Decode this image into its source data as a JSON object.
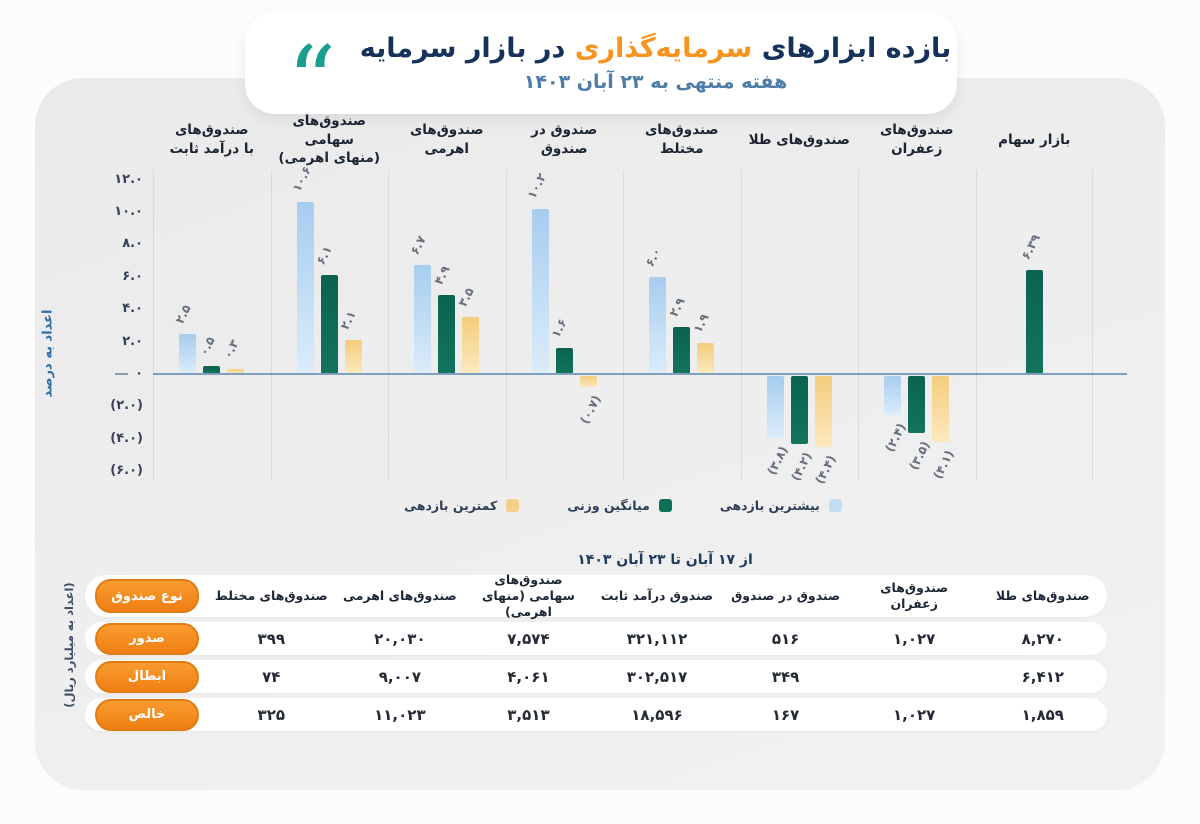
{
  "title": {
    "part1": "بازده ابزارهای",
    "highlight": "سرمایه‌گذاری",
    "part2": "در بازار سرمایه",
    "subtitle": "هفته منتهی به ۲۳ آبان ۱۴۰۳"
  },
  "colors": {
    "title_navy": "#16325c",
    "title_orange": "#f7941e",
    "subtitle_blue": "#4d7da8",
    "quote_teal": "#1b9e8e",
    "bar_highest": "#b9d8f3",
    "bar_weighted_avg": "#0e6e57",
    "bar_lowest": "#f5d088",
    "zero_line": "#7fa0bc",
    "row_pill_orange": "#f68d1f",
    "card_gray": "#ececec"
  },
  "chart_data": {
    "type": "bar",
    "title": "بازده ابزارهای سرمایه‌گذاری در بازار سرمایه",
    "subtitle": "هفته منتهی به ۲۳ آبان ۱۴۰۳",
    "ylabel": "اعداد به درصد",
    "ylim": [
      -6.6,
      12.6
    ],
    "grid": "vertical-separators",
    "legend_position": "bottom-center",
    "yticks": [
      "۱۲.۰",
      "۱۰.۰",
      "۸.۰",
      "۶.۰",
      "۴.۰",
      "۲.۰",
      "۰",
      "(۲.۰)",
      "(۴.۰)",
      "(۶.۰)"
    ],
    "ytick_values": [
      12,
      10,
      8,
      6,
      4,
      2,
      0,
      -2,
      -4,
      -6
    ],
    "series_names": [
      "بیشترین بازدهی",
      "میانگین وزنی",
      "کمترین بازدهی"
    ],
    "groups": [
      {
        "label": "صندوق‌های با درآمد ثابت",
        "label_lines": [
          "صندوق‌های",
          "با درآمد ثابت"
        ],
        "bars": [
          {
            "series": "high",
            "value": 2.5,
            "label": "۲.۵"
          },
          {
            "series": "avg",
            "value": 0.5,
            "label": "۰.۵"
          },
          {
            "series": "low",
            "value": 0.3,
            "label": "۰.۳"
          }
        ]
      },
      {
        "label": "صندوق‌های سهامی (منهای اهرمی)",
        "label_lines": [
          "صندوق‌های سهامی",
          "(منهای اهرمی)"
        ],
        "bars": [
          {
            "series": "high",
            "value": 10.6,
            "label": "۱۰.۶"
          },
          {
            "series": "avg",
            "value": 6.1,
            "label": "۶.۱"
          },
          {
            "series": "low",
            "value": 2.1,
            "label": "۲.۱"
          }
        ]
      },
      {
        "label": "صندوق‌های اهرمی",
        "label_lines": [
          "صندوق‌های اهرمی"
        ],
        "bars": [
          {
            "series": "high",
            "value": 6.7,
            "label": "۶.۷"
          },
          {
            "series": "avg",
            "value": 4.9,
            "label": "۴.۹"
          },
          {
            "series": "low",
            "value": 3.5,
            "label": "۳.۵"
          }
        ]
      },
      {
        "label": "صندوق در صندوق",
        "label_lines": [
          "صندوق در صندوق"
        ],
        "bars": [
          {
            "series": "high",
            "value": 10.2,
            "label": "۱۰.۲"
          },
          {
            "series": "avg",
            "value": 1.6,
            "label": "۱.۶"
          },
          {
            "series": "low",
            "value": -0.7,
            "label": "(۰.۷)"
          }
        ]
      },
      {
        "label": "صندوق‌های مختلط",
        "label_lines": [
          "صندوق‌های مختلط"
        ],
        "bars": [
          {
            "series": "high",
            "value": 6.0,
            "label": "۶.۰"
          },
          {
            "series": "avg",
            "value": 2.9,
            "label": "۲.۹"
          },
          {
            "series": "low",
            "value": 1.9,
            "label": "۱.۹"
          }
        ]
      },
      {
        "label": "صندوق‌های طلا",
        "label_lines": [
          "صندوق‌های طلا"
        ],
        "bars": [
          {
            "series": "high",
            "value": -3.8,
            "label": "(۳.۸)"
          },
          {
            "series": "avg",
            "value": -4.2,
            "label": "(۴.۲)"
          },
          {
            "series": "low",
            "value": -4.4,
            "label": "(۴.۴)"
          }
        ]
      },
      {
        "label": "صندوق‌های زعفران",
        "label_lines": [
          "صندوق‌های زعفران"
        ],
        "bars": [
          {
            "series": "high",
            "value": -2.4,
            "label": "(۲.۴)"
          },
          {
            "series": "avg",
            "value": -3.5,
            "label": "(۳.۵)"
          },
          {
            "series": "low",
            "value": -4.1,
            "label": "(۴.۱)"
          }
        ]
      },
      {
        "label": "بازار سهام",
        "label_lines": [
          "بازار سهام"
        ],
        "bars": [
          {
            "series": "avg",
            "value": 6.39,
            "label": "۶.۳۹"
          }
        ]
      }
    ],
    "legend": [
      {
        "name": "کمترین بازدهی",
        "series": "low",
        "color": "#f5d088"
      },
      {
        "name": "میانگین وزنی",
        "series": "avg",
        "color": "#0e6e57"
      },
      {
        "name": "بیشترین بازدهی",
        "series": "high",
        "color": "#c3ddf3"
      }
    ]
  },
  "table": {
    "period": "از ۱۷ آبان تا ۲۳ آبان ۱۴۰۳",
    "unit_label": "(اعداد به میلیارد ریال)",
    "header_pill": "نوع صندوق",
    "columns": [
      "صندوق‌های مختلط",
      "صندوق‌های اهرمی",
      "صندوق‌های سهامی (منهای اهرمی)",
      "صندوق درآمد ثابت",
      "صندوق در صندوق",
      "صندوق‌های زعفران",
      "صندوق‌های طلا"
    ],
    "rows": [
      {
        "label": "صدور",
        "values": [
          "۳۹۹",
          "۲۰,۰۳۰",
          "۷,۵۷۴",
          "۳۲۱,۱۱۲",
          "۵۱۶",
          "۱,۰۲۷",
          "۸,۲۷۰"
        ]
      },
      {
        "label": "ابطال",
        "values": [
          "۷۴",
          "۹,۰۰۷",
          "۴,۰۶۱",
          "۳۰۲,۵۱۷",
          "۳۴۹",
          "",
          "۶,۴۱۲"
        ]
      },
      {
        "label": "خالص",
        "values": [
          "۳۲۵",
          "۱۱,۰۲۳",
          "۳,۵۱۳",
          "۱۸,۵۹۶",
          "۱۶۷",
          "۱,۰۲۷",
          "۱,۸۵۹"
        ]
      }
    ]
  }
}
